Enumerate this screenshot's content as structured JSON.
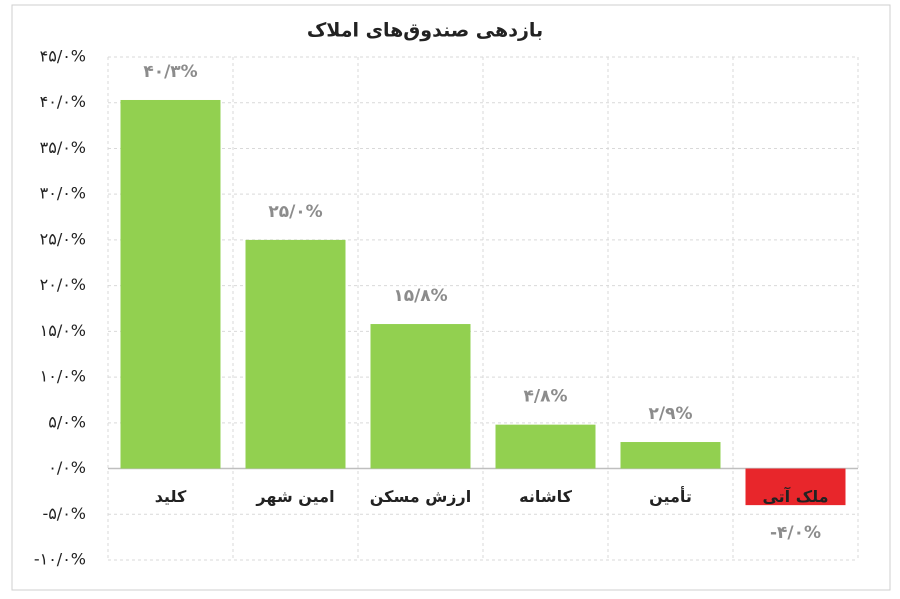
{
  "chart_data": {
    "type": "bar",
    "title": "بازدهی صندوق‌های املاک",
    "categories": [
      "کلید",
      "امین شهر",
      "ارزش مسکن",
      "کاشانه",
      "تأمین",
      "ملک آتی"
    ],
    "values": [
      40.3,
      25.0,
      15.8,
      4.8,
      2.9,
      -4.0
    ],
    "value_labels": [
      "۴۰/۳%",
      "۲۵/۰%",
      "۱۵/۸%",
      "۴/۸%",
      "۲/۹%",
      "-۴/۰%"
    ],
    "positive_color": "#92d050",
    "negative_color": "#e8262b",
    "ylim": [
      -10,
      45
    ],
    "yticks": [
      {
        "value": -10,
        "label": "-۱۰/۰%"
      },
      {
        "value": -5,
        "label": "-۵/۰%"
      },
      {
        "value": 0,
        "label": "۰/۰%"
      },
      {
        "value": 5,
        "label": "۵/۰%"
      },
      {
        "value": 10,
        "label": "۱۰/۰%"
      },
      {
        "value": 15,
        "label": "۱۵/۰%"
      },
      {
        "value": 20,
        "label": "۲۰/۰%"
      },
      {
        "value": 25,
        "label": "۲۵/۰%"
      },
      {
        "value": 30,
        "label": "۳۰/۰%"
      },
      {
        "value": 35,
        "label": "۳۵/۰%"
      },
      {
        "value": 40,
        "label": "۴۰/۰%"
      },
      {
        "value": 45,
        "label": "۴۵/۰%"
      }
    ],
    "grid": true
  }
}
